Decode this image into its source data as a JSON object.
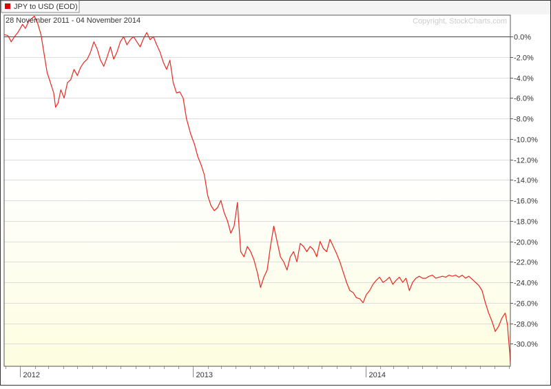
{
  "legend": {
    "label": "JPY to USD (EOD)",
    "swatch_color": "#e00000"
  },
  "date_range": "28 November 2011 - 04 November 2014",
  "copyright": "Copyright, StockCharts.com",
  "colors": {
    "line": "#e8261f",
    "grid": "#dcdcdc",
    "zero_line": "#444444",
    "frame": "#333333",
    "bg_top": "#ffffff",
    "bg_bottom": "#fdfde0"
  },
  "chart_data": {
    "type": "line",
    "x_tick_labels": [
      "2012",
      "2013",
      "2014"
    ],
    "y_tick_labels": [
      "0.0%",
      "-2.0%",
      "-4.0%",
      "-6.0%",
      "-8.0%",
      "-10.0%",
      "-12.0%",
      "-14.0%",
      "-16.0%",
      "-18.0%",
      "-20.0%",
      "-22.0%",
      "-24.0%",
      "-26.0%",
      "-28.0%",
      "-30.0%"
    ],
    "y_ticks": [
      0,
      -2,
      -4,
      -6,
      -8,
      -10,
      -12,
      -14,
      -16,
      -18,
      -20,
      -22,
      -24,
      -26,
      -28,
      -30
    ],
    "ylim": [
      -32.2,
      2.1
    ],
    "xlim": [
      "2011-11-28",
      "2014-11-04"
    ],
    "grid": true,
    "legend_position": "top-left",
    "series": [
      {
        "name": "JPY to USD (EOD)",
        "points": [
          [
            "2011-11-28",
            0.2
          ],
          [
            "2011-12-06",
            0.1
          ],
          [
            "2011-12-13",
            -0.5
          ],
          [
            "2011-12-20",
            0.0
          ],
          [
            "2011-12-27",
            0.4
          ],
          [
            "2012-01-06",
            1.2
          ],
          [
            "2012-01-12",
            0.8
          ],
          [
            "2012-01-19",
            1.5
          ],
          [
            "2012-01-26",
            1.8
          ],
          [
            "2012-01-31",
            2.0
          ],
          [
            "2012-02-07",
            1.3
          ],
          [
            "2012-02-14",
            0.2
          ],
          [
            "2012-02-20",
            -1.5
          ],
          [
            "2012-02-27",
            -3.5
          ],
          [
            "2012-03-05",
            -4.5
          ],
          [
            "2012-03-12",
            -5.5
          ],
          [
            "2012-03-16",
            -6.9
          ],
          [
            "2012-03-21",
            -6.5
          ],
          [
            "2012-03-27",
            -5.2
          ],
          [
            "2012-04-03",
            -6.0
          ],
          [
            "2012-04-10",
            -4.5
          ],
          [
            "2012-04-17",
            -4.2
          ],
          [
            "2012-04-24",
            -3.2
          ],
          [
            "2012-05-01",
            -3.8
          ],
          [
            "2012-05-08",
            -3.0
          ],
          [
            "2012-05-15",
            -2.5
          ],
          [
            "2012-05-22",
            -2.2
          ],
          [
            "2012-05-29",
            -1.5
          ],
          [
            "2012-06-05",
            -0.5
          ],
          [
            "2012-06-12",
            -1.2
          ],
          [
            "2012-06-19",
            -2.3
          ],
          [
            "2012-06-26",
            -2.9
          ],
          [
            "2012-07-03",
            -2.0
          ],
          [
            "2012-07-10",
            -1.0
          ],
          [
            "2012-07-17",
            -2.2
          ],
          [
            "2012-07-24",
            -1.5
          ],
          [
            "2012-07-31",
            -0.5
          ],
          [
            "2012-08-07",
            0.0
          ],
          [
            "2012-08-14",
            -0.8
          ],
          [
            "2012-08-21",
            -0.3
          ],
          [
            "2012-08-28",
            0.0
          ],
          [
            "2012-09-04",
            -0.5
          ],
          [
            "2012-09-11",
            -1.0
          ],
          [
            "2012-09-18",
            -0.2
          ],
          [
            "2012-09-25",
            0.4
          ],
          [
            "2012-10-02",
            -0.3
          ],
          [
            "2012-10-09",
            0.0
          ],
          [
            "2012-10-16",
            -0.8
          ],
          [
            "2012-10-23",
            -1.5
          ],
          [
            "2012-10-30",
            -2.5
          ],
          [
            "2012-11-06",
            -3.2
          ],
          [
            "2012-11-13",
            -2.3
          ],
          [
            "2012-11-20",
            -4.5
          ],
          [
            "2012-11-27",
            -5.5
          ],
          [
            "2012-12-04",
            -5.4
          ],
          [
            "2012-12-11",
            -6.0
          ],
          [
            "2012-12-18",
            -8.0
          ],
          [
            "2012-12-27",
            -9.5
          ],
          [
            "2013-01-04",
            -10.5
          ],
          [
            "2013-01-11",
            -11.7
          ],
          [
            "2013-01-18",
            -12.5
          ],
          [
            "2013-01-25",
            -13.5
          ],
          [
            "2013-02-01",
            -15.5
          ],
          [
            "2013-02-08",
            -16.5
          ],
          [
            "2013-02-15",
            -17.0
          ],
          [
            "2013-02-22",
            -16.7
          ],
          [
            "2013-03-01",
            -16.0
          ],
          [
            "2013-03-08",
            -17.2
          ],
          [
            "2013-03-15",
            -18.0
          ],
          [
            "2013-03-22",
            -19.2
          ],
          [
            "2013-03-29",
            -18.5
          ],
          [
            "2013-04-05",
            -16.2
          ],
          [
            "2013-04-12",
            -21.0
          ],
          [
            "2013-04-19",
            -21.5
          ],
          [
            "2013-04-26",
            -20.5
          ],
          [
            "2013-05-03",
            -21.0
          ],
          [
            "2013-05-10",
            -21.8
          ],
          [
            "2013-05-17",
            -23.0
          ],
          [
            "2013-05-24",
            -24.5
          ],
          [
            "2013-05-31",
            -23.5
          ],
          [
            "2013-06-07",
            -22.8
          ],
          [
            "2013-06-14",
            -20.5
          ],
          [
            "2013-06-21",
            -18.5
          ],
          [
            "2013-06-28",
            -20.0
          ],
          [
            "2013-07-05",
            -21.5
          ],
          [
            "2013-07-12",
            -22.0
          ],
          [
            "2013-07-19",
            -22.8
          ],
          [
            "2013-07-26",
            -21.5
          ],
          [
            "2013-08-02",
            -21.0
          ],
          [
            "2013-08-09",
            -22.0
          ],
          [
            "2013-08-16",
            -20.2
          ],
          [
            "2013-08-23",
            -20.5
          ],
          [
            "2013-08-30",
            -21.0
          ],
          [
            "2013-09-06",
            -20.5
          ],
          [
            "2013-09-13",
            -20.8
          ],
          [
            "2013-09-20",
            -21.5
          ],
          [
            "2013-09-27",
            -20.0
          ],
          [
            "2013-10-04",
            -20.7
          ],
          [
            "2013-10-11",
            -21.0
          ],
          [
            "2013-10-18",
            -19.8
          ],
          [
            "2013-10-25",
            -20.5
          ],
          [
            "2013-11-01",
            -21.2
          ],
          [
            "2013-11-08",
            -22.0
          ],
          [
            "2013-11-15",
            -23.0
          ],
          [
            "2013-11-22",
            -24.0
          ],
          [
            "2013-11-29",
            -24.8
          ],
          [
            "2013-12-06",
            -25.0
          ],
          [
            "2013-12-13",
            -25.5
          ],
          [
            "2013-12-20",
            -25.6
          ],
          [
            "2013-12-27",
            -26.0
          ],
          [
            "2014-01-03",
            -25.2
          ],
          [
            "2014-01-10",
            -24.8
          ],
          [
            "2014-01-17",
            -24.2
          ],
          [
            "2014-01-24",
            -23.8
          ],
          [
            "2014-01-31",
            -23.5
          ],
          [
            "2014-02-07",
            -24.0
          ],
          [
            "2014-02-14",
            -23.8
          ],
          [
            "2014-02-21",
            -23.5
          ],
          [
            "2014-02-28",
            -24.2
          ],
          [
            "2014-03-07",
            -23.8
          ],
          [
            "2014-03-14",
            -23.5
          ],
          [
            "2014-03-21",
            -24.0
          ],
          [
            "2014-03-28",
            -23.6
          ],
          [
            "2014-04-04",
            -24.8
          ],
          [
            "2014-04-11",
            -24.0
          ],
          [
            "2014-04-18",
            -23.6
          ],
          [
            "2014-04-25",
            -23.4
          ],
          [
            "2014-05-02",
            -23.6
          ],
          [
            "2014-05-09",
            -23.6
          ],
          [
            "2014-05-16",
            -23.4
          ],
          [
            "2014-05-23",
            -23.3
          ],
          [
            "2014-05-30",
            -23.6
          ],
          [
            "2014-06-06",
            -23.5
          ],
          [
            "2014-06-13",
            -23.4
          ],
          [
            "2014-06-20",
            -23.5
          ],
          [
            "2014-06-27",
            -23.3
          ],
          [
            "2014-07-04",
            -23.4
          ],
          [
            "2014-07-11",
            -23.3
          ],
          [
            "2014-07-18",
            -23.5
          ],
          [
            "2014-07-25",
            -23.3
          ],
          [
            "2014-08-01",
            -23.6
          ],
          [
            "2014-08-08",
            -23.4
          ],
          [
            "2014-08-15",
            -23.7
          ],
          [
            "2014-08-22",
            -24.0
          ],
          [
            "2014-08-29",
            -24.3
          ],
          [
            "2014-09-05",
            -24.8
          ],
          [
            "2014-09-12",
            -26.0
          ],
          [
            "2014-09-19",
            -27.0
          ],
          [
            "2014-09-26",
            -27.8
          ],
          [
            "2014-10-03",
            -28.8
          ],
          [
            "2014-10-10",
            -28.3
          ],
          [
            "2014-10-17",
            -27.5
          ],
          [
            "2014-10-24",
            -27.0
          ],
          [
            "2014-10-29",
            -28.2
          ],
          [
            "2014-10-31",
            -29.5
          ],
          [
            "2014-11-03",
            -31.0
          ],
          [
            "2014-11-04",
            -32.0
          ]
        ]
      }
    ]
  }
}
